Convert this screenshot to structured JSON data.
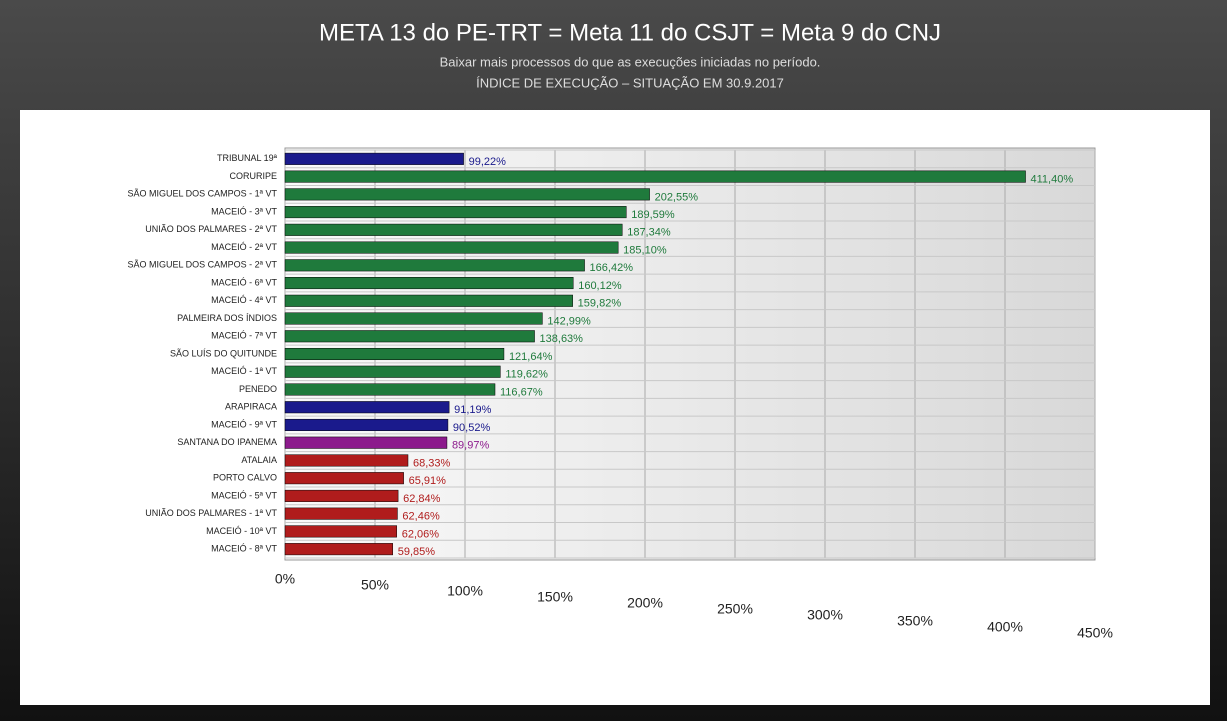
{
  "chart_data": {
    "type": "bar",
    "title": "META 13 do PE-TRT = Meta 11 do CSJT = Meta 9 do CNJ",
    "subtitle": "Baixar mais processos do que as execuções iniciadas no período.",
    "subtitle2": "ÍNDICE DE EXECUÇÃO – SITUAÇÃO EM 30.9.2017",
    "categories": [
      "TRIBUNAL 19ª",
      "CORURIPE",
      "SÃO MIGUEL DOS CAMPOS - 1ª VT",
      "MACEIÓ - 3ª VT",
      "UNIÃO DOS PALMARES - 2ª VT",
      "MACEIÓ - 2ª VT",
      "SÃO MIGUEL DOS CAMPOS - 2ª VT",
      "MACEIÓ - 6ª VT",
      "MACEIÓ - 4ª VT",
      "PALMEIRA DOS ÍNDIOS",
      "MACEIÓ - 7ª VT",
      "SÃO LUÍS DO QUITUNDE",
      "MACEIÓ - 1ª VT",
      "PENEDO",
      "ARAPIRACA",
      "MACEIÓ - 9ª VT",
      "SANTANA DO IPANEMA",
      "ATALAIA",
      "PORTO CALVO",
      "MACEIÓ - 5ª VT",
      "UNIÃO DOS PALMARES - 1ª VT",
      "MACEIÓ - 10ª VT",
      "MACEIÓ - 8ª VT"
    ],
    "values": [
      99.22,
      411.4,
      202.55,
      189.59,
      187.34,
      185.1,
      166.42,
      160.12,
      159.82,
      142.99,
      138.63,
      121.64,
      119.62,
      116.67,
      91.19,
      90.52,
      89.97,
      68.33,
      65.91,
      62.84,
      62.46,
      62.06,
      59.85
    ],
    "value_labels": [
      "99,22%",
      "411,40%",
      "202,55%",
      "189,59%",
      "187,34%",
      "185,10%",
      "166,42%",
      "160,12%",
      "159,82%",
      "142,99%",
      "138,63%",
      "121,64%",
      "119,62%",
      "116,67%",
      "91,19%",
      "90,52%",
      "89,97%",
      "68,33%",
      "65,91%",
      "62,84%",
      "62,46%",
      "62,06%",
      "59,85%"
    ],
    "colors": [
      "#1a1a8c",
      "#1f7a3c",
      "#1f7a3c",
      "#1f7a3c",
      "#1f7a3c",
      "#1f7a3c",
      "#1f7a3c",
      "#1f7a3c",
      "#1f7a3c",
      "#1f7a3c",
      "#1f7a3c",
      "#1f7a3c",
      "#1f7a3c",
      "#1f7a3c",
      "#1a1a8c",
      "#1a1a8c",
      "#8c1a8c",
      "#b01c1c",
      "#b01c1c",
      "#b01c1c",
      "#b01c1c",
      "#b01c1c",
      "#b01c1c"
    ],
    "xlim": [
      0,
      450
    ],
    "xticks": [
      {
        "value": 0,
        "label": "0%"
      },
      {
        "value": 50,
        "label": "50%"
      },
      {
        "value": 100,
        "label": "100%"
      },
      {
        "value": 150,
        "label": "150%"
      },
      {
        "value": 200,
        "label": "200%"
      },
      {
        "value": 250,
        "label": "250%"
      },
      {
        "value": 300,
        "label": "300%"
      },
      {
        "value": 350,
        "label": "350%"
      },
      {
        "value": 400,
        "label": "400%"
      },
      {
        "value": 450,
        "label": "450%"
      }
    ],
    "grid": true
  }
}
